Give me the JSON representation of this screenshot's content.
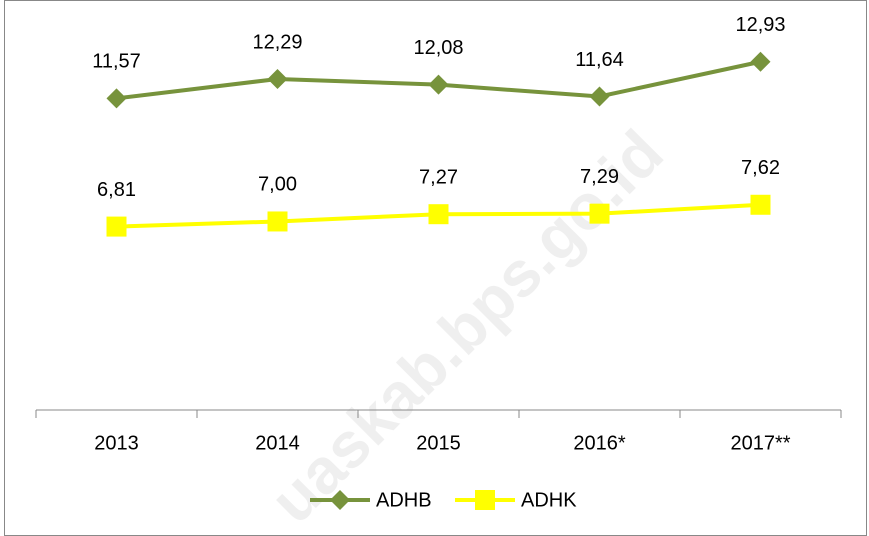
{
  "chart_data": {
    "type": "line",
    "categories": [
      "2013",
      "2014",
      "2015",
      "2016*",
      "2017**"
    ],
    "series": [
      {
        "name": "ADHB",
        "color": "#77933c",
        "marker": "diamond",
        "values": [
          11.57,
          12.29,
          12.08,
          11.64,
          12.93
        ],
        "value_labels": [
          "11,57",
          "12,29",
          "12,08",
          "11,64",
          "12,93"
        ]
      },
      {
        "name": "ADHK",
        "color": "#ffff00",
        "marker": "square",
        "values": [
          6.81,
          7.0,
          7.27,
          7.29,
          7.62
        ],
        "value_labels": [
          "6,81",
          "7,00",
          "7,27",
          "7,29",
          "7,62"
        ]
      }
    ],
    "ylim": [
      0,
      15
    ],
    "legend": "bottom",
    "watermark": "uaskab.bps.go.id"
  }
}
